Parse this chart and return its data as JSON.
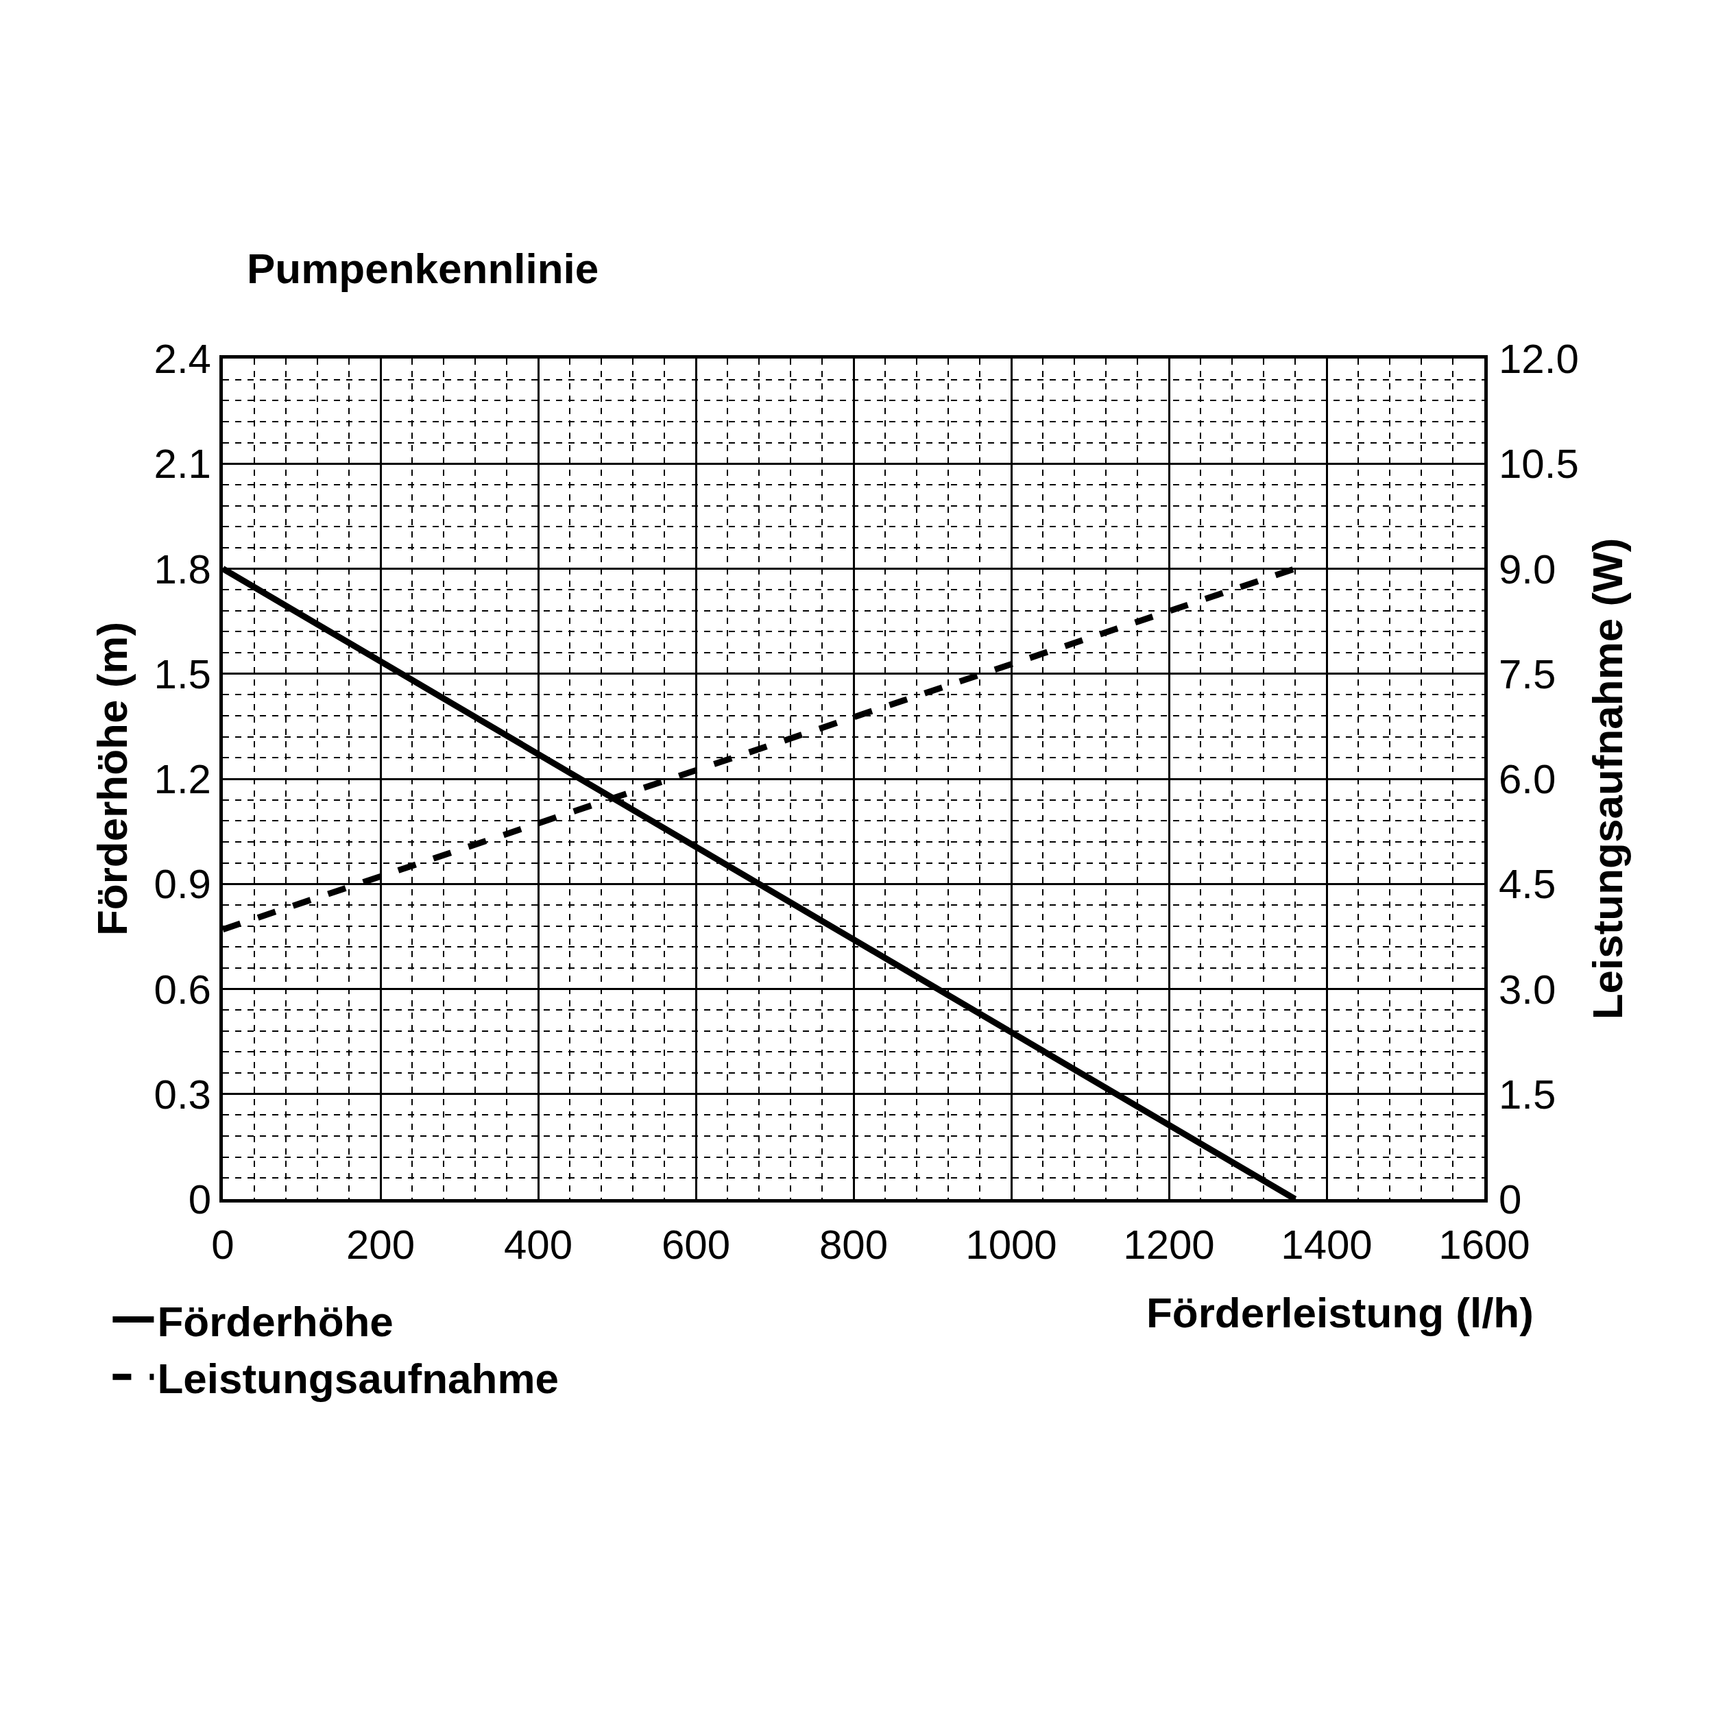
{
  "chart_data": {
    "type": "line",
    "title": "Pumpenkennlinie",
    "xlabel": "Förderleistung (l/h)",
    "ylabel": "Förderhöhe (m)",
    "y2label": "Leistungsaufnahme (W)",
    "series": [
      {
        "name": "Förderhöhe",
        "color": "#000000",
        "values": [
          1.8,
          0
        ],
        "line_style": "solid"
      },
      {
        "name": "Leistungsaufnahme",
        "color": "#000000",
        "values": [
          3.85,
          9.0
        ],
        "line_style": "dashed",
        "axis": "y2"
      }
    ],
    "x": [
      0,
      1360
    ],
    "xlim": [
      0,
      1600
    ],
    "xticks": [
      0,
      200,
      400,
      600,
      800,
      1000,
      1200,
      1400,
      1600
    ],
    "ylim": [
      0,
      2.4
    ],
    "yticks": [
      0,
      0.3,
      0.6,
      0.9,
      1.2,
      1.5,
      1.8,
      2.1,
      2.4
    ],
    "y2lim": [
      0,
      12
    ],
    "y2ticks": [
      0,
      1.5,
      {
        "value": 3,
        "label": "3.0"
      },
      4.5,
      {
        "value": 6,
        "label": "6.0"
      },
      7.5,
      {
        "value": 9,
        "label": "9.0"
      },
      10.5,
      {
        "value": 12,
        "label": "12.0"
      }
    ],
    "grid": true,
    "legend": "bottom left",
    "marker": "none"
  }
}
